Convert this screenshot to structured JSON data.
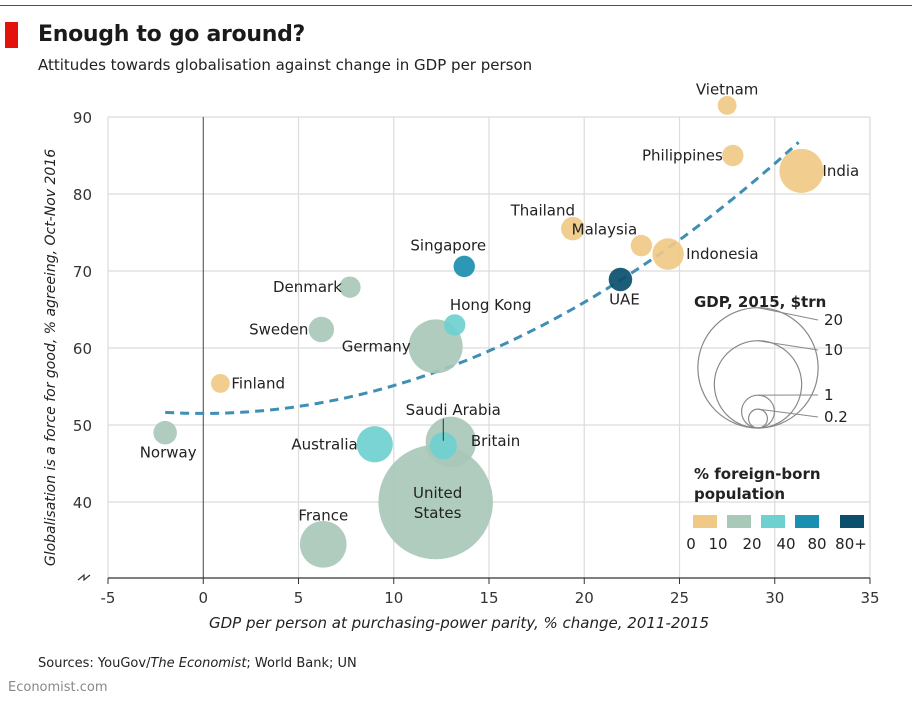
{
  "header": {
    "title": "Enough to go around?",
    "subtitle": "Attitudes towards globalisation against change in GDP per person"
  },
  "footer": {
    "source_prefix": "Sources: YouGov/",
    "source_italic": "The Economist",
    "source_suffix": "; World Bank; UN",
    "brand": "Economist.com"
  },
  "colors": {
    "band_0_10": "#f0c987",
    "band_10_20": "#a8c8b8",
    "band_20_40": "#6fd0d0",
    "band_40_80": "#1a8fb0",
    "band_80_plus": "#0b4f6c",
    "trend": "#3d8fb5",
    "brand_red": "#e3120b"
  },
  "chart_data": {
    "type": "scatter",
    "title": "Enough to go around?",
    "subtitle": "Attitudes towards globalisation against change in GDP per person",
    "xlabel": "GDP per person at purchasing-power parity, % change, 2011-2015",
    "ylabel": "Globalisation is a force for good, % agreeing, Oct-Nov 2016",
    "xlim": [
      -5,
      35
    ],
    "ylim": [
      30,
      90
    ],
    "y_axis_break": true,
    "x_ticks": [
      "-5",
      "0",
      "5",
      "10",
      "15",
      "20",
      "25",
      "30",
      "35"
    ],
    "y_ticks": [
      "40",
      "50",
      "60",
      "70",
      "80",
      "90"
    ],
    "grid": true,
    "trendline": "quadratic, dashed",
    "size_encodes": "GDP, 2015, $trn",
    "color_encodes": "% foreign-born population",
    "points": [
      {
        "label": "Vietnam",
        "x": 27.5,
        "y": 91.5,
        "gdp": 0.2,
        "band": "band_0_10"
      },
      {
        "label": "Philippines",
        "x": 27.8,
        "y": 85,
        "gdp": 0.3,
        "band": "band_0_10"
      },
      {
        "label": "India",
        "x": 31.4,
        "y": 83,
        "gdp": 2.1,
        "band": "band_0_10"
      },
      {
        "label": "Thailand",
        "x": 19.4,
        "y": 75.5,
        "gdp": 0.4,
        "band": "band_0_10"
      },
      {
        "label": "Malaysia",
        "x": 23,
        "y": 73.3,
        "gdp": 0.3,
        "band": "band_0_10"
      },
      {
        "label": "Indonesia",
        "x": 24.4,
        "y": 72.2,
        "gdp": 0.9,
        "band": "band_0_10"
      },
      {
        "label": "Singapore",
        "x": 13.7,
        "y": 70.6,
        "gdp": 0.3,
        "band": "band_40_80"
      },
      {
        "label": "UAE",
        "x": 21.9,
        "y": 68.9,
        "gdp": 0.4,
        "band": "band_80_plus"
      },
      {
        "label": "Denmark",
        "x": 7.7,
        "y": 67.9,
        "gdp": 0.3,
        "band": "band_10_20"
      },
      {
        "label": "Hong Kong",
        "x": 13.2,
        "y": 63,
        "gdp": 0.3,
        "band": "band_20_40"
      },
      {
        "label": "Sweden",
        "x": 6.2,
        "y": 62.4,
        "gdp": 0.5,
        "band": "band_10_20"
      },
      {
        "label": "Germany",
        "x": 12.2,
        "y": 60.2,
        "gdp": 3.4,
        "band": "band_10_20"
      },
      {
        "label": "Finland",
        "x": 0.9,
        "y": 55.4,
        "gdp": 0.2,
        "band": "band_0_10"
      },
      {
        "label": "Norway",
        "x": -2,
        "y": 49,
        "gdp": 0.4,
        "band": "band_10_20"
      },
      {
        "label": "Australia",
        "x": 9,
        "y": 47.5,
        "gdp": 1.3,
        "band": "band_20_40"
      },
      {
        "label": "Britain",
        "x": 13,
        "y": 47.8,
        "gdp": 2.9,
        "band": "band_10_20"
      },
      {
        "label": "Saudi Arabia",
        "x": 12.6,
        "y": 47.3,
        "gdp": 0.6,
        "band": "band_20_40"
      },
      {
        "label": "United States",
        "x": 12.2,
        "y": 40,
        "gdp": 18,
        "band": "band_10_20"
      },
      {
        "label": "France",
        "x": 6.3,
        "y": 34.5,
        "gdp": 2.4,
        "band": "band_10_20"
      }
    ],
    "size_legend": {
      "title": "GDP, 2015, $trn",
      "values": [
        20,
        10,
        1,
        0.2
      ],
      "labels": [
        "20",
        "10",
        "1",
        "0.2"
      ]
    },
    "color_legend": {
      "title_line1": "% foreign-born",
      "title_line2": "population",
      "tick_labels": [
        "0",
        "10",
        "20",
        "40",
        "80",
        "80+"
      ],
      "bands": [
        "band_0_10",
        "band_10_20",
        "band_20_40",
        "band_40_80",
        "band_80_plus"
      ]
    }
  }
}
